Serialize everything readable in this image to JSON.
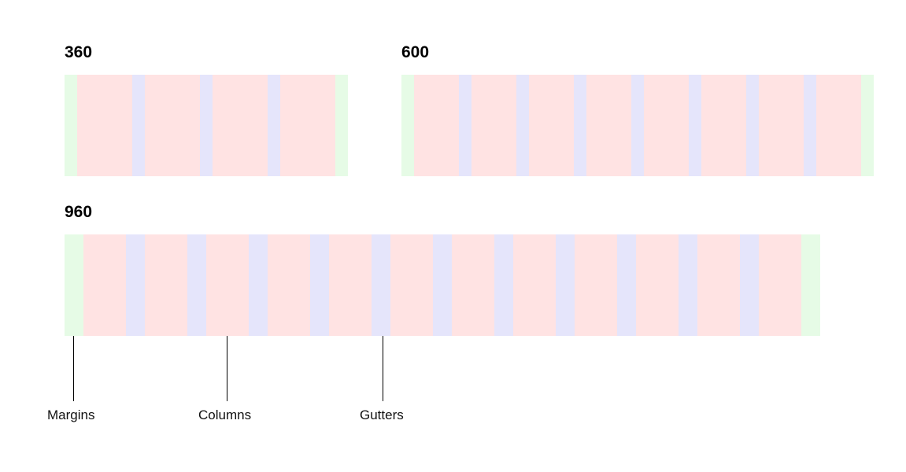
{
  "colors": {
    "margin": "#e6fbe6",
    "column": "#ffe3e3",
    "gutter": "#e5e5fb"
  },
  "grids": [
    {
      "title": "360",
      "columns": 4
    },
    {
      "title": "600",
      "columns": 8
    },
    {
      "title": "960",
      "columns": 12
    }
  ],
  "legend": {
    "margins": "Margins",
    "columns": "Columns",
    "gutters": "Gutters"
  }
}
